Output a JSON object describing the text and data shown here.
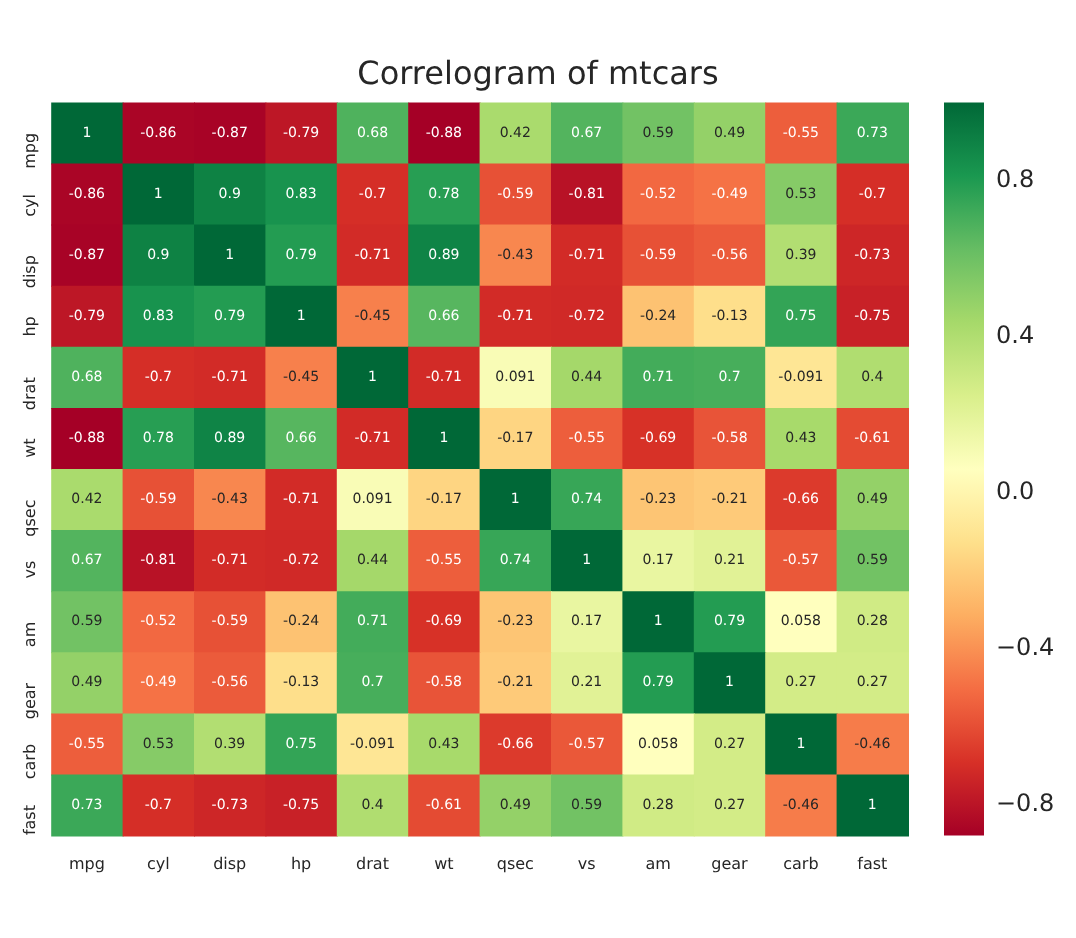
{
  "chart_data": {
    "type": "heatmap",
    "title": "Correlogram of mtcars",
    "categories": [
      "mpg",
      "cyl",
      "disp",
      "hp",
      "drat",
      "wt",
      "qsec",
      "vs",
      "am",
      "gear",
      "carb",
      "fast"
    ],
    "y_categories": [
      "mpg",
      "cyl",
      "disp",
      "hp",
      "drat",
      "wt",
      "qsec",
      "vs",
      "am",
      "gear",
      "carb",
      "fast"
    ],
    "cells": [
      [
        1,
        -0.86,
        -0.87,
        -0.79,
        0.68,
        -0.88,
        0.42,
        0.67,
        0.59,
        0.49,
        -0.55,
        0.73
      ],
      [
        -0.86,
        1,
        0.9,
        0.83,
        -0.7,
        0.78,
        -0.59,
        -0.81,
        -0.52,
        -0.49,
        0.53,
        -0.7
      ],
      [
        -0.87,
        0.9,
        1,
        0.79,
        -0.71,
        0.89,
        -0.43,
        -0.71,
        -0.59,
        -0.56,
        0.39,
        -0.73
      ],
      [
        -0.79,
        0.83,
        0.79,
        1,
        -0.45,
        0.66,
        -0.71,
        -0.72,
        -0.24,
        -0.13,
        0.75,
        -0.75
      ],
      [
        0.68,
        -0.7,
        -0.71,
        -0.45,
        1,
        -0.71,
        0.091,
        0.44,
        0.71,
        0.7,
        -0.091,
        0.4
      ],
      [
        -0.88,
        0.78,
        0.89,
        0.66,
        -0.71,
        1,
        -0.17,
        -0.55,
        -0.69,
        -0.58,
        0.43,
        -0.61
      ],
      [
        0.42,
        -0.59,
        -0.43,
        -0.71,
        0.091,
        -0.17,
        1,
        0.74,
        -0.23,
        -0.21,
        -0.66,
        0.49
      ],
      [
        0.67,
        -0.81,
        -0.71,
        -0.72,
        0.44,
        -0.55,
        0.74,
        1,
        0.17,
        0.21,
        -0.57,
        0.59
      ],
      [
        0.59,
        -0.52,
        -0.59,
        -0.24,
        0.71,
        -0.69,
        -0.23,
        0.17,
        1,
        0.79,
        0.058,
        0.28
      ],
      [
        0.49,
        -0.49,
        -0.56,
        -0.13,
        0.7,
        -0.58,
        -0.21,
        0.21,
        0.79,
        1,
        0.27,
        0.27
      ],
      [
        -0.55,
        0.53,
        0.39,
        0.75,
        -0.091,
        0.43,
        -0.66,
        -0.57,
        0.058,
        0.27,
        1,
        -0.46
      ],
      [
        0.73,
        -0.7,
        -0.73,
        -0.75,
        0.4,
        -0.61,
        0.49,
        0.59,
        0.28,
        0.27,
        -0.46,
        1
      ]
    ],
    "clim": [
      -0.88,
      1
    ],
    "cticks": [
      {
        "value": -0.8,
        "label": "−0.8"
      },
      {
        "value": -0.4,
        "label": "−0.4"
      },
      {
        "value": 0,
        "label": "0.0"
      },
      0.4,
      0.8
    ],
    "data_labels": true
  }
}
